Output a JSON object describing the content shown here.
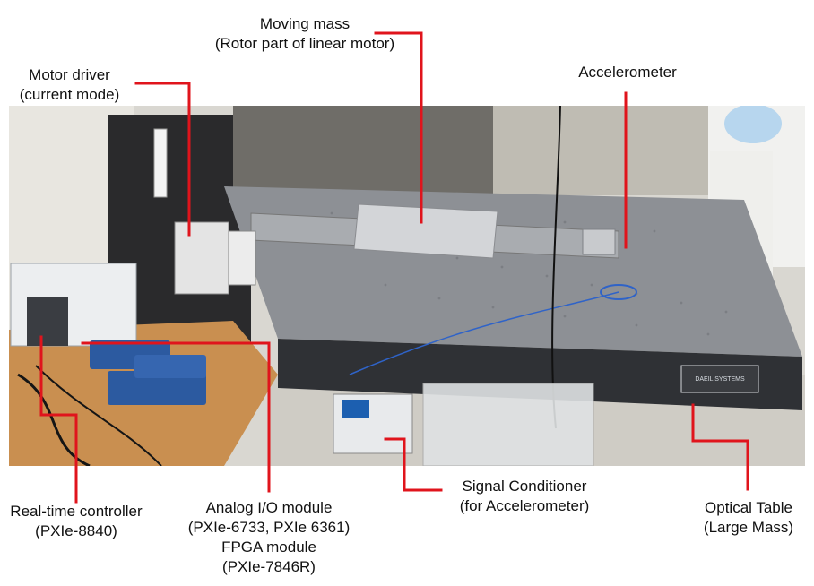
{
  "colors": {
    "leader": "#e0141c",
    "text": "#111111",
    "table_top": "#8a8d92",
    "table_side": "#2e3034",
    "lab_bg": "#d8d6d0",
    "desk": "#c88e4f",
    "module_blue": "#2c5aa0",
    "chassis": "#e9ecef"
  },
  "labels": {
    "moving_mass": {
      "line1": "Moving mass",
      "line2": "(Rotor part of linear motor)"
    },
    "motor_driver": {
      "line1": "Motor driver",
      "line2": "(current mode)"
    },
    "accelerometer": {
      "line1": "Accelerometer"
    },
    "realtime_controller": {
      "line1": "Real-time controller",
      "line2": "(PXIe-8840)"
    },
    "analog_io": {
      "line1": "Analog I/O module",
      "line2": "(PXIe-6733, PXIe 6361)",
      "line3": "FPGA module",
      "line4": "(PXIe-7846R)"
    },
    "signal_conditioner": {
      "line1": "Signal Conditioner",
      "line2": "(for Accelerometer)"
    },
    "optical_table": {
      "line1": "Optical Table",
      "line2": "(Large Mass)"
    }
  },
  "photo": {
    "table_brand": "DAEIL SYSTEMS"
  }
}
